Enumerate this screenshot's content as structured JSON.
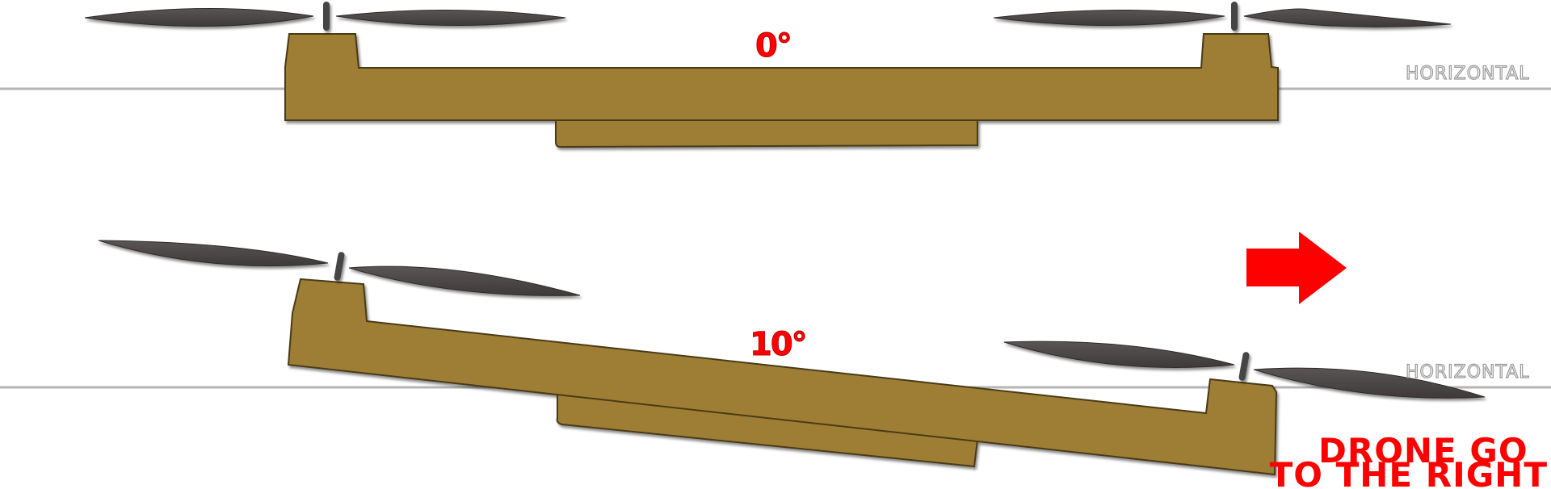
{
  "top_diagram": {
    "angle_label": "0°",
    "horizontal_label": "HORIZONTAL"
  },
  "bottom_diagram": {
    "angle_label": "10°",
    "horizontal_label": "HORIZONTAL"
  },
  "caption": {
    "line1": "DRONE GO",
    "line2": "TO THE RIGHT"
  },
  "colors": {
    "frame": "#9e7e35",
    "frame_edge": "#4a3a18",
    "propeller": "#4a4646",
    "horizon_line": "#b5b5b5",
    "arrow": "#ff0000",
    "text_red": "#ff0000"
  },
  "icons": {
    "direction": "right-arrow-icon"
  }
}
